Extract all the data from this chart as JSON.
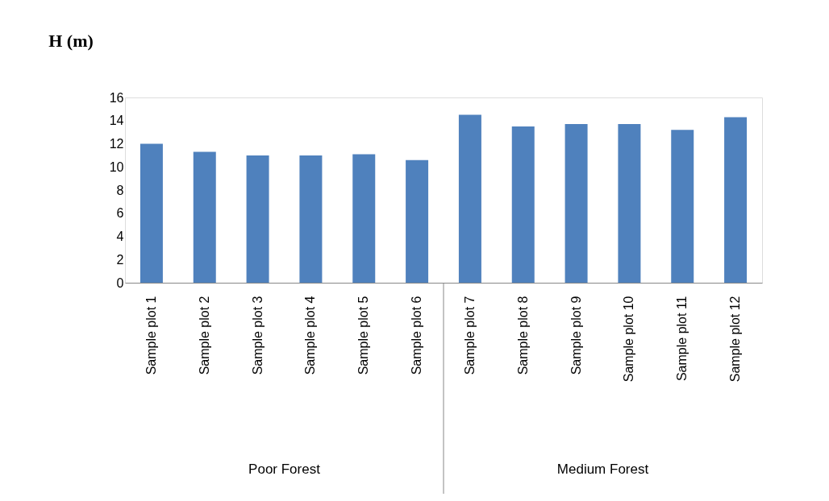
{
  "chart_data": {
    "type": "bar",
    "title": "H (m)",
    "categories": [
      "Sample plot 1",
      "Sample plot 2",
      "Sample plot 3",
      "Sample plot 4",
      "Sample plot 5",
      "Sample plot 6",
      "Sample plot 7",
      "Sample plot 8",
      "Sample plot 9",
      "Sample plot 10",
      "Sample plot 11",
      "Sample plot 12"
    ],
    "values": [
      12,
      11.3,
      11,
      11,
      11.1,
      10.6,
      14.5,
      13.5,
      13.7,
      13.7,
      13.2,
      14.3
    ],
    "color": "#4f81bd",
    "ylim": [
      0,
      16
    ],
    "yticks": [
      0,
      2,
      4,
      6,
      8,
      10,
      12,
      14,
      16
    ],
    "grid": false,
    "annotations": [
      "Poor Forest",
      "Medium Forest"
    ]
  }
}
